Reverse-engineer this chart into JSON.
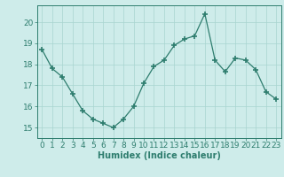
{
  "x": [
    0,
    1,
    2,
    3,
    4,
    5,
    6,
    7,
    8,
    9,
    10,
    11,
    12,
    13,
    14,
    15,
    16,
    17,
    18,
    19,
    20,
    21,
    22,
    23
  ],
  "y": [
    18.7,
    17.8,
    17.4,
    16.6,
    15.8,
    15.4,
    15.2,
    15.0,
    15.4,
    16.0,
    17.1,
    17.9,
    18.2,
    18.9,
    19.2,
    19.35,
    20.4,
    18.2,
    17.65,
    18.3,
    18.2,
    17.75,
    16.7,
    16.35
  ],
  "line_color": "#2e7d6e",
  "marker": "+",
  "marker_size": 4,
  "marker_lw": 1.2,
  "bg_color": "#ceecea",
  "grid_color": "#a8d5d0",
  "axis_color": "#2e7d6e",
  "xlabel": "Humidex (Indice chaleur)",
  "ylim": [
    14.5,
    20.8
  ],
  "xlim": [
    -0.5,
    23.5
  ],
  "yticks": [
    15,
    16,
    17,
    18,
    19,
    20
  ],
  "xtick_labels": [
    "0",
    "1",
    "2",
    "3",
    "4",
    "5",
    "6",
    "7",
    "8",
    "9",
    "10",
    "11",
    "12",
    "13",
    "14",
    "15",
    "16",
    "17",
    "18",
    "19",
    "20",
    "21",
    "22",
    "23"
  ],
  "xlabel_fontsize": 7,
  "tick_fontsize": 6.5
}
